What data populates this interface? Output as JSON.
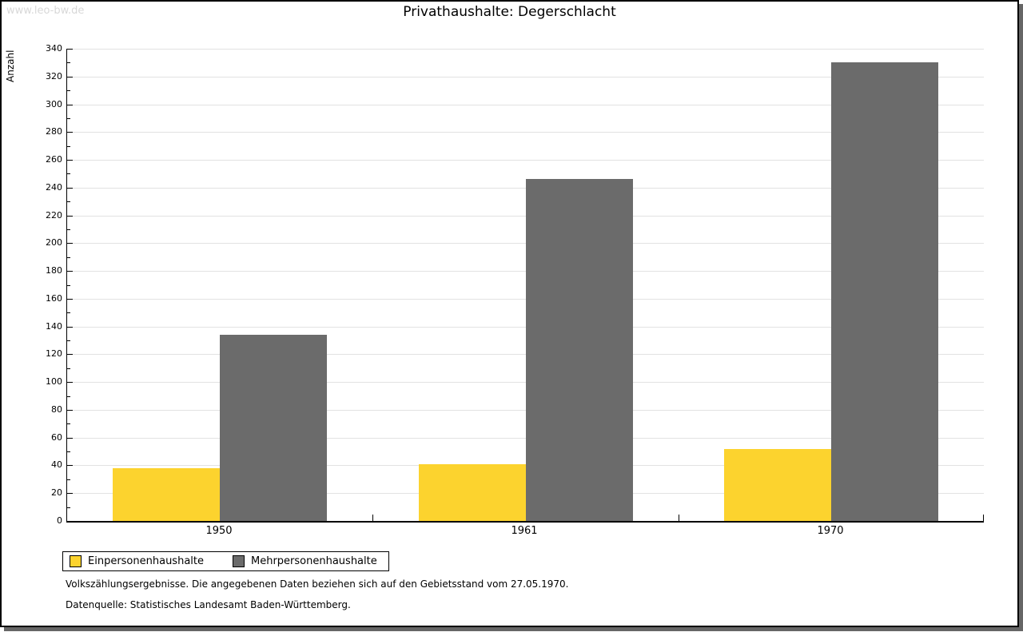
{
  "watermark": "www.leo-bw.de",
  "chart_data": {
    "type": "bar",
    "title": "Privathaushalte: Degerschlacht",
    "ylabel": "Anzahl",
    "xlabel": "",
    "categories": [
      "1950",
      "1961",
      "1970"
    ],
    "series": [
      {
        "name": "Einpersonenhaushalte",
        "color": "#FCD32E",
        "values": [
          38,
          41,
          52
        ]
      },
      {
        "name": "Mehrpersonenhaushalte",
        "color": "#6B6B6B",
        "values": [
          134,
          246,
          330
        ]
      }
    ],
    "ylim": [
      0,
      340
    ],
    "yticks": [
      0,
      20,
      40,
      60,
      80,
      100,
      120,
      140,
      160,
      180,
      200,
      220,
      240,
      260,
      280,
      300,
      320,
      340
    ],
    "minor_tick_step": 10,
    "grid": true,
    "gridline_color": "#E2E2E2",
    "legend_position": "bottom-left"
  },
  "footer": {
    "line1": "Volkszählungsergebnisse. Die angegebenen Daten beziehen sich auf den Gebietsstand vom 27.05.1970.",
    "line2": "Datenquelle: Statistisches Landesamt Baden-Württemberg."
  }
}
